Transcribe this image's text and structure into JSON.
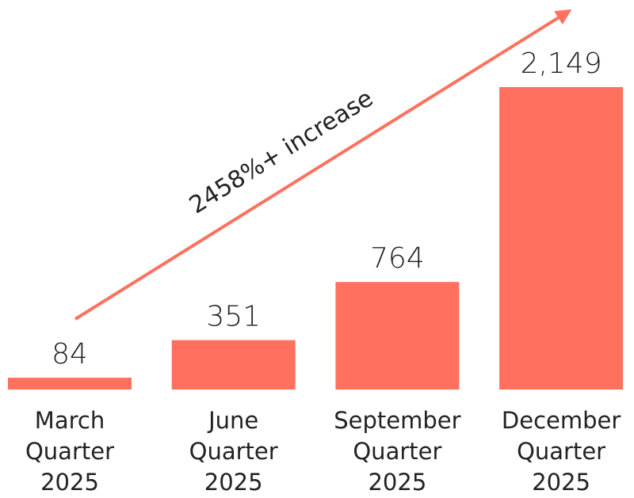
{
  "chart_data": {
    "type": "bar",
    "categories": [
      "March\nQuarter\n2025",
      "June\nQuarter\n2025",
      "September\nQuarter\n2025",
      "December\nQuarter\n2025"
    ],
    "values": [
      84,
      351,
      764,
      2149
    ],
    "value_labels": [
      "84",
      "351",
      "764",
      "2,149"
    ],
    "color": "#ff715e",
    "annotation": "2458%+ increase"
  }
}
